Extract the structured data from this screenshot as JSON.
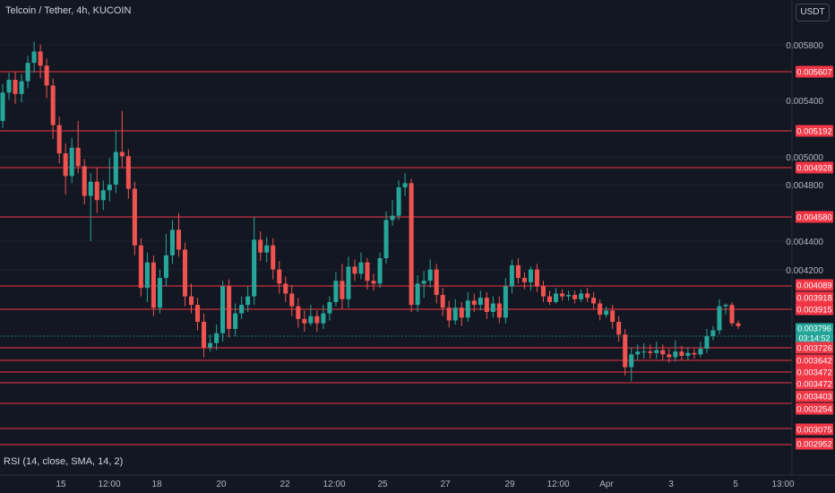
{
  "header": {
    "title": "Telcoin / Tether, 4h, KUCOIN",
    "currency": "USDT",
    "indicator": "RSI (14, close, SMA, 14, 2)"
  },
  "colors": {
    "background": "#131722",
    "bull": "#26a69a",
    "bear": "#ef5350",
    "level_line": "#f23645",
    "axis_text": "#b2b5be"
  },
  "chart_data": {
    "type": "candlestick",
    "title": "Telcoin / Tether, 4h, KUCOIN",
    "y_ticks": [
      "0.005800",
      "0.005400",
      "0.005000",
      "0.004800",
      "0.004400",
      "0.004200"
    ],
    "x_ticks": [
      "15",
      "12:00",
      "18",
      "20",
      "22",
      "12:00",
      "25",
      "27",
      "29",
      "12:00",
      "Apr",
      "3",
      "5",
      "13:00"
    ],
    "levels": [
      "0.005607",
      "0.005192",
      "0.004928",
      "0.004580",
      "0.004089",
      "0.003915",
      "0.003726",
      "0.003642",
      "0.003472",
      "0.003403",
      "0.003254",
      "0.003075",
      "0.002952"
    ],
    "right_labels": [
      "0.005607",
      "0.005192",
      "0.004928",
      "0.004580",
      "0.004089",
      "0.003918",
      "0.003915",
      "0.003796",
      "03:14:52",
      "0.003726",
      "0.003642",
      "0.003472",
      "0.003472",
      "0.003403",
      "0.003254",
      "0.003075",
      "0.002952"
    ],
    "current_price": "0.003796",
    "countdown": "03:14:52",
    "candles": [
      [
        0.00525,
        0.00545,
        0.00551,
        0.0052
      ],
      [
        0.00545,
        0.00554,
        0.00559,
        0.0054
      ],
      [
        0.00554,
        0.00544,
        0.0056,
        0.00537
      ],
      [
        0.00544,
        0.00553,
        0.00558,
        0.00538
      ],
      [
        0.00553,
        0.00566,
        0.00571,
        0.00548
      ],
      [
        0.00566,
        0.00574,
        0.00581,
        0.00559
      ],
      [
        0.00574,
        0.00564,
        0.00579,
        0.00555
      ],
      [
        0.00564,
        0.0055,
        0.00569,
        0.00541
      ],
      [
        0.0055,
        0.00522,
        0.00555,
        0.00512
      ],
      [
        0.00522,
        0.00502,
        0.00528,
        0.00495
      ],
      [
        0.00502,
        0.00486,
        0.00509,
        0.00473
      ],
      [
        0.00486,
        0.00506,
        0.00513,
        0.00481
      ],
      [
        0.00506,
        0.00493,
        0.00525,
        0.00488
      ],
      [
        0.00493,
        0.00472,
        0.00498,
        0.00466
      ],
      [
        0.00472,
        0.00482,
        0.00488,
        0.0044
      ],
      [
        0.00482,
        0.00469,
        0.00492,
        0.0046
      ],
      [
        0.00469,
        0.00476,
        0.00483,
        0.00462
      ],
      [
        0.00476,
        0.0048,
        0.00499,
        0.00468
      ],
      [
        0.0048,
        0.00503,
        0.00518,
        0.00474
      ],
      [
        0.00503,
        0.005,
        0.00532,
        0.00492
      ],
      [
        0.005,
        0.00477,
        0.00505,
        0.0047
      ],
      [
        0.00477,
        0.00437,
        0.00482,
        0.0043
      ],
      [
        0.00437,
        0.00407,
        0.00442,
        0.00401
      ],
      [
        0.00407,
        0.00425,
        0.00432,
        0.00397
      ],
      [
        0.00425,
        0.00393,
        0.0043,
        0.00387
      ],
      [
        0.00393,
        0.00414,
        0.0042,
        0.00389
      ],
      [
        0.00414,
        0.0043,
        0.00445,
        0.00408
      ],
      [
        0.0043,
        0.00448,
        0.00455,
        0.00424
      ],
      [
        0.00448,
        0.00434,
        0.0046,
        0.00429
      ],
      [
        0.00434,
        0.00401,
        0.00439,
        0.00394
      ],
      [
        0.00401,
        0.00395,
        0.0041,
        0.00389
      ],
      [
        0.00395,
        0.00383,
        0.004,
        0.00377
      ],
      [
        0.00383,
        0.00365,
        0.00389,
        0.00358
      ],
      [
        0.00365,
        0.00368,
        0.00374,
        0.00362
      ],
      [
        0.00368,
        0.00375,
        0.00381,
        0.00363
      ],
      [
        0.00375,
        0.00408,
        0.00412,
        0.00369
      ],
      [
        0.00408,
        0.00378,
        0.00413,
        0.00372
      ],
      [
        0.00378,
        0.00389,
        0.00396,
        0.00373
      ],
      [
        0.00389,
        0.00395,
        0.00401,
        0.00385
      ],
      [
        0.00395,
        0.00401,
        0.00408,
        0.0039
      ],
      [
        0.00401,
        0.00441,
        0.00457,
        0.00395
      ],
      [
        0.00441,
        0.00432,
        0.00447,
        0.00426
      ],
      [
        0.00432,
        0.00437,
        0.00443,
        0.00425
      ],
      [
        0.00437,
        0.0042,
        0.00442,
        0.00413
      ],
      [
        0.0042,
        0.0041,
        0.00426,
        0.00403
      ],
      [
        0.0041,
        0.00403,
        0.00415,
        0.00397
      ],
      [
        0.00403,
        0.00394,
        0.00409,
        0.00387
      ],
      [
        0.00394,
        0.00385,
        0.004,
        0.00379
      ],
      [
        0.00385,
        0.00382,
        0.00391,
        0.00376
      ],
      [
        0.00382,
        0.00387,
        0.00395,
        0.0038
      ],
      [
        0.00387,
        0.00382,
        0.00391,
        0.00376
      ],
      [
        0.00382,
        0.00389,
        0.00395,
        0.00378
      ],
      [
        0.00389,
        0.00397,
        0.00401,
        0.00384
      ],
      [
        0.00397,
        0.00412,
        0.00418,
        0.00394
      ],
      [
        0.00412,
        0.00399,
        0.00424,
        0.00392
      ],
      [
        0.00399,
        0.00422,
        0.00429,
        0.00393
      ],
      [
        0.00422,
        0.00417,
        0.00427,
        0.00412
      ],
      [
        0.00417,
        0.00425,
        0.00432,
        0.00413
      ],
      [
        0.00425,
        0.00412,
        0.00428,
        0.00406
      ],
      [
        0.00412,
        0.0041,
        0.00417,
        0.00405
      ],
      [
        0.0041,
        0.00428,
        0.00432,
        0.00407
      ],
      [
        0.00428,
        0.00455,
        0.00461,
        0.00424
      ],
      [
        0.00455,
        0.00458,
        0.00469,
        0.00451
      ],
      [
        0.00458,
        0.00478,
        0.00483,
        0.00455
      ],
      [
        0.00478,
        0.00481,
        0.00488,
        0.00472
      ],
      [
        0.00481,
        0.00395,
        0.00484,
        0.0039
      ],
      [
        0.00395,
        0.0041,
        0.00416,
        0.0039
      ],
      [
        0.0041,
        0.00412,
        0.00419,
        0.004
      ],
      [
        0.00412,
        0.0042,
        0.00427,
        0.00407
      ],
      [
        0.0042,
        0.00402,
        0.00424,
        0.00396
      ],
      [
        0.00402,
        0.00393,
        0.00407,
        0.00387
      ],
      [
        0.00393,
        0.00384,
        0.00398,
        0.00379
      ],
      [
        0.00384,
        0.00393,
        0.00399,
        0.00381
      ],
      [
        0.00393,
        0.00386,
        0.00397,
        0.0038
      ],
      [
        0.00386,
        0.00398,
        0.00404,
        0.00383
      ],
      [
        0.00398,
        0.00395,
        0.00403,
        0.0039
      ],
      [
        0.00395,
        0.004,
        0.00405,
        0.00391
      ],
      [
        0.004,
        0.0039,
        0.00404,
        0.00385
      ],
      [
        0.0039,
        0.00396,
        0.00401,
        0.00386
      ],
      [
        0.00396,
        0.00386,
        0.00401,
        0.00382
      ],
      [
        0.00386,
        0.00408,
        0.00414,
        0.00382
      ],
      [
        0.00408,
        0.00423,
        0.00427,
        0.00403
      ],
      [
        0.00423,
        0.00414,
        0.00428,
        0.0041
      ],
      [
        0.00414,
        0.00411,
        0.00418,
        0.00406
      ],
      [
        0.00411,
        0.0042,
        0.00422,
        0.00405
      ],
      [
        0.0042,
        0.00408,
        0.00424,
        0.00404
      ],
      [
        0.00408,
        0.00401,
        0.00412,
        0.00397
      ],
      [
        0.00401,
        0.00397,
        0.00405,
        0.00395
      ],
      [
        0.00397,
        0.00403,
        0.00407,
        0.00396
      ],
      [
        0.00403,
        0.00401,
        0.00406,
        0.00398
      ],
      [
        0.00401,
        0.00402,
        0.00405,
        0.00398
      ],
      [
        0.00402,
        0.00399,
        0.00405,
        0.00396
      ],
      [
        0.00399,
        0.00403,
        0.00406,
        0.00397
      ],
      [
        0.00403,
        0.004,
        0.00407,
        0.00397
      ],
      [
        0.004,
        0.00396,
        0.00404,
        0.00392
      ],
      [
        0.00396,
        0.00388,
        0.00399,
        0.00384
      ],
      [
        0.00388,
        0.00391,
        0.00394,
        0.00386
      ],
      [
        0.00391,
        0.00383,
        0.00395,
        0.00378
      ],
      [
        0.00383,
        0.00374,
        0.00387,
        0.00369
      ],
      [
        0.00374,
        0.00351,
        0.00378,
        0.00345
      ],
      [
        0.00351,
        0.0036,
        0.00365,
        0.00341
      ],
      [
        0.0036,
        0.00362,
        0.00367,
        0.00356
      ],
      [
        0.00362,
        0.00362,
        0.00368,
        0.00357
      ],
      [
        0.00362,
        0.00361,
        0.00367,
        0.00357
      ],
      [
        0.00361,
        0.00363,
        0.00369,
        0.00357
      ],
      [
        0.00363,
        0.0036,
        0.00367,
        0.00356
      ],
      [
        0.0036,
        0.00358,
        0.00364,
        0.00354
      ],
      [
        0.00358,
        0.00362,
        0.0037,
        0.00355
      ],
      [
        0.00362,
        0.00359,
        0.00366,
        0.00356
      ],
      [
        0.00359,
        0.00361,
        0.00365,
        0.00356
      ],
      [
        0.00361,
        0.0036,
        0.00364,
        0.00357
      ],
      [
        0.0036,
        0.00364,
        0.00369,
        0.00358
      ],
      [
        0.00364,
        0.00373,
        0.00378,
        0.00361
      ],
      [
        0.00373,
        0.00377,
        0.0038,
        0.0037
      ],
      [
        0.00377,
        0.00394,
        0.00399,
        0.00374
      ],
      [
        0.00394,
        0.00395,
        0.00396,
        0.00388
      ],
      [
        0.00395,
        0.00382,
        0.00397,
        0.0038
      ],
      [
        0.00382,
        0.0038,
        0.00384,
        0.00378
      ]
    ]
  }
}
